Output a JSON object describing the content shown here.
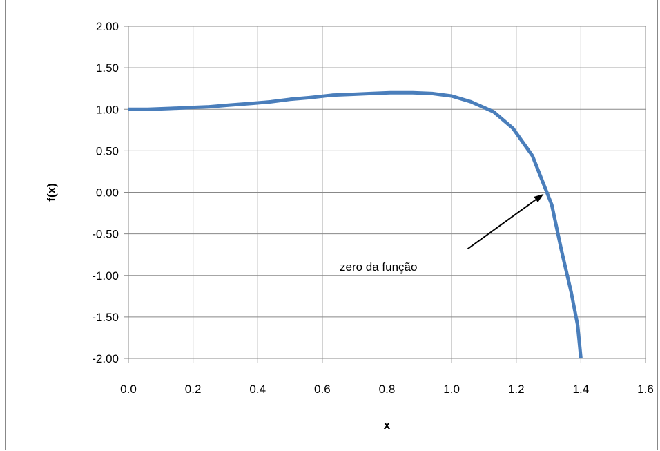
{
  "chart_data": {
    "type": "line",
    "title": "",
    "xlabel": "x",
    "ylabel": "f(x)",
    "xlim": [
      0.0,
      1.6
    ],
    "ylim": [
      -2.0,
      2.0
    ],
    "grid": true,
    "legend": "none",
    "x_ticks": [
      "0.0",
      "0.2",
      "0.4",
      "0.6",
      "0.8",
      "1.0",
      "1.2",
      "1.4",
      "1.6"
    ],
    "y_ticks": [
      "2.00",
      "1.50",
      "1.00",
      "0.50",
      "0.00",
      "-0.50",
      "-1.00",
      "-1.50",
      "-2.00"
    ],
    "series": [
      {
        "color": "#4a7ebb",
        "x": [
          0.0,
          0.06,
          0.13,
          0.19,
          0.25,
          0.31,
          0.38,
          0.44,
          0.5,
          0.56,
          0.63,
          0.69,
          0.75,
          0.81,
          0.88,
          0.94,
          1.0,
          1.06,
          1.13,
          1.19,
          1.25,
          1.31,
          1.34,
          1.37,
          1.39,
          1.4
        ],
        "y": [
          1.0,
          1.0,
          1.01,
          1.02,
          1.03,
          1.05,
          1.07,
          1.09,
          1.12,
          1.14,
          1.17,
          1.18,
          1.19,
          1.2,
          1.2,
          1.19,
          1.16,
          1.09,
          0.97,
          0.77,
          0.44,
          -0.15,
          -0.7,
          -1.2,
          -1.6,
          -2.0
        ]
      }
    ],
    "annotation": {
      "text": "zero da função",
      "arrow_from": [
        1.05,
        -0.68
      ],
      "arrow_to": [
        1.285,
        -0.02
      ]
    }
  }
}
